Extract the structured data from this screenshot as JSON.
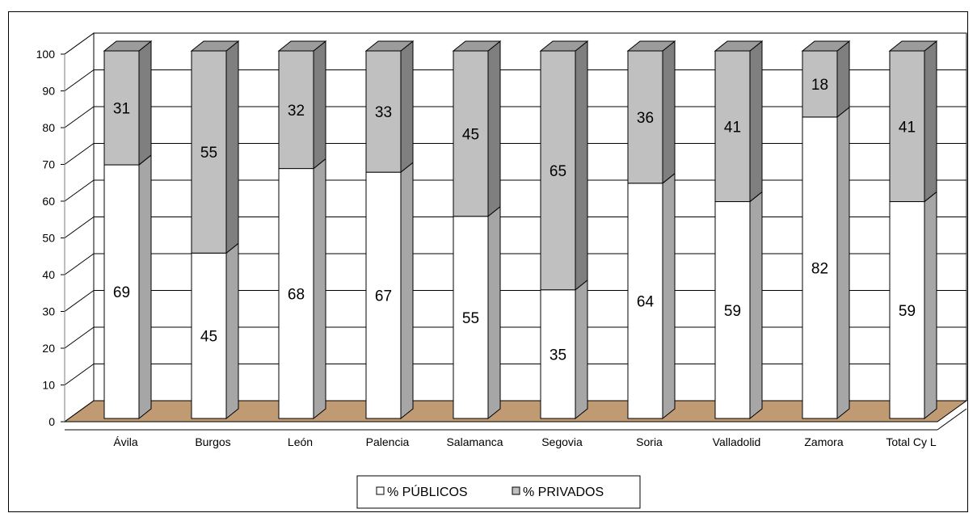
{
  "chart_data": {
    "type": "bar",
    "stacked": true,
    "three_d": true,
    "categories": [
      "Ávila",
      "Burgos",
      "León",
      "Palencia",
      "Salamanca",
      "Segovia",
      "Soria",
      "Valladolid",
      "Zamora",
      "Total Cy L"
    ],
    "series": [
      {
        "name": "% PÚBLICOS",
        "values": [
          69,
          45,
          68,
          67,
          55,
          35,
          64,
          59,
          82,
          59
        ],
        "color": "#ffffff"
      },
      {
        "name": "% PRIVADOS",
        "values": [
          31,
          55,
          32,
          33,
          45,
          65,
          36,
          41,
          18,
          41
        ],
        "color": "#c0c0c0"
      }
    ],
    "ylim": [
      0,
      100
    ],
    "yticks": [
      "0",
      "10",
      "20",
      "30",
      "40",
      "50",
      "60",
      "70",
      "80",
      "90",
      "100"
    ],
    "grid": true,
    "legend_position": "bottom",
    "floor_color": "#c09a72"
  }
}
